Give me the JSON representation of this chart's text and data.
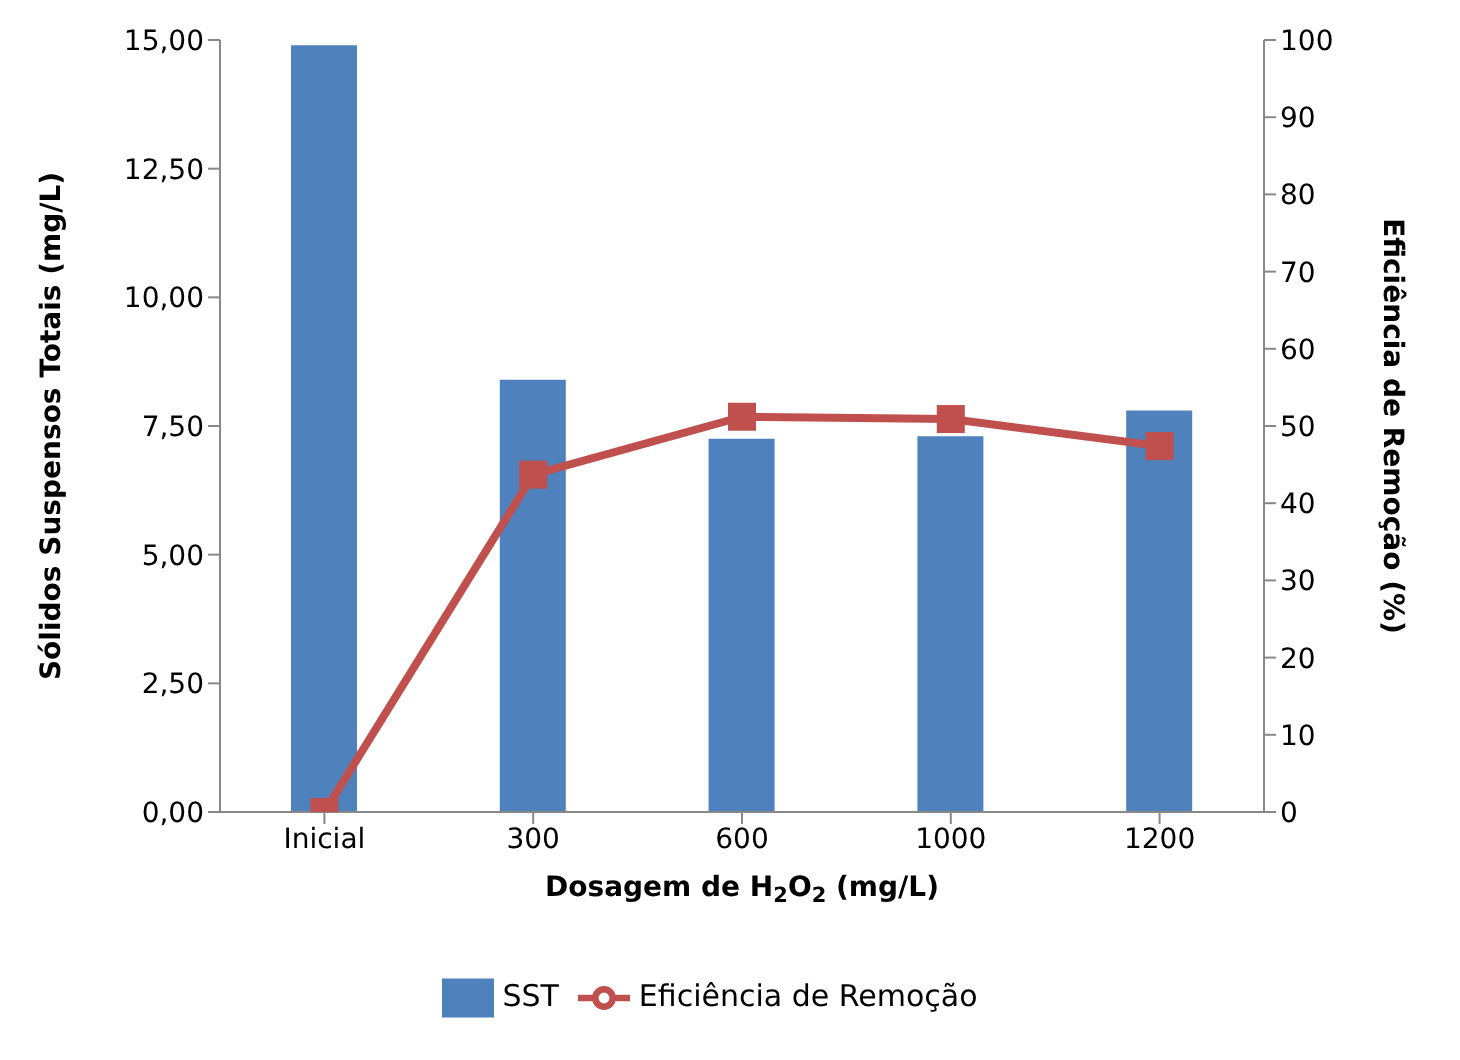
{
  "chart_data": {
    "type": "bar",
    "xlabel": "Dosagem de H$_{2}$O$_{2}$ (mg/L)",
    "ylabel": "Sólidos Suspensos Totais (mg/L)",
    "y2label": "Eficiência de Remoção (%)",
    "categories": [
      "Inicial",
      "300",
      "600",
      "1000",
      "1200"
    ],
    "series": [
      {
        "name": "SST",
        "color": "#4f81bd",
        "values": [
          14.9,
          8.4,
          7.25,
          7.3,
          7.8
        ]
      },
      {
        "name": "Eficiência de Remoção",
        "type": "line",
        "axis": "y2",
        "color": "#c0504d",
        "values": [
          0,
          43.7,
          51.2,
          50.9,
          47.4
        ]
      }
    ],
    "ylim": [
      0,
      15
    ],
    "yticks": [
      {
        "value": 0,
        "label": "0,00"
      },
      {
        "value": 2.5,
        "label": "2,50"
      },
      {
        "value": 5,
        "label": "5,00"
      },
      {
        "value": 7.5,
        "label": "7,50"
      },
      {
        "value": 10,
        "label": "10,00"
      },
      {
        "value": 12.5,
        "label": "12,50"
      },
      {
        "value": 15,
        "label": "15,00"
      }
    ],
    "y2lim": [
      0,
      100
    ],
    "y2ticks": [
      0,
      10,
      20,
      30,
      40,
      50,
      60,
      70,
      80,
      90,
      100
    ],
    "legend": "bottom",
    "marker": "square",
    "grid": false
  }
}
